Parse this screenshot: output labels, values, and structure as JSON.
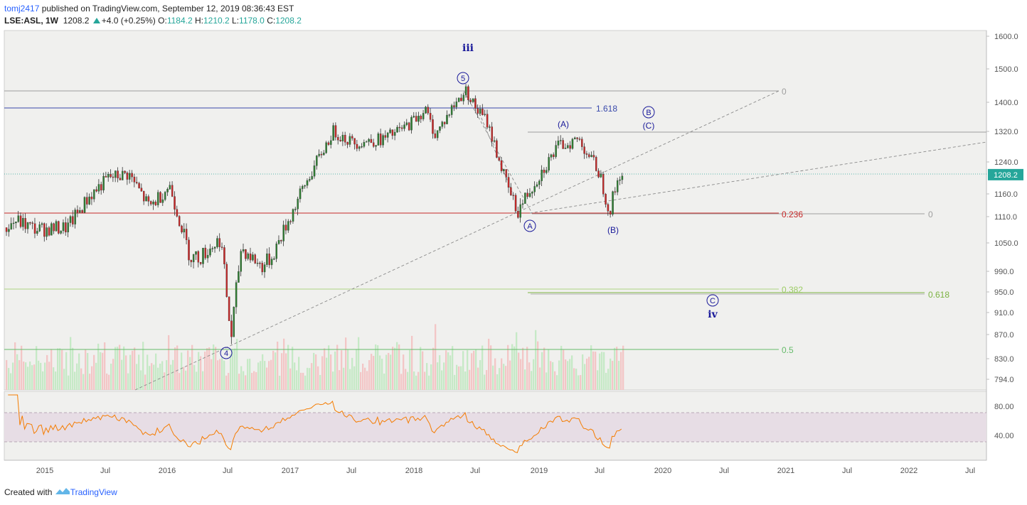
{
  "header": {
    "user": "tomj2417",
    "published_text": " published on TradingView.com, September 12, 2019 08:36:43 EST",
    "symbol": "LSE:ASL, 1W",
    "last": "1208.2",
    "change": "+4.0 (+0.25%)",
    "o_label": "O:",
    "o_val": "1184.2",
    "h_label": "H:",
    "h_val": "1210.2",
    "l_label": "L:",
    "l_val": "1178.0",
    "c_label": "C:",
    "c_val": "1208.2"
  },
  "footer": {
    "created_with": "Created with",
    "brand": "TradingView"
  },
  "colors": {
    "chart_bg": "#f0f0ee",
    "up": "#26a69a",
    "down": "#ef5350",
    "wave_blue": "#1a1a9a",
    "rsi_line": "#f57c00",
    "rsi_band": "#e7dde5"
  },
  "chart_data": {
    "type": "candlestick",
    "symbol": "LSE:ASL",
    "interval": "1W",
    "y_axis_ticks": [
      "1600.0",
      "1500.0",
      "1400.0",
      "1320.0",
      "1240.0",
      "1160.0",
      "1110.0",
      "1050.0",
      "990.0",
      "950.0",
      "910.0",
      "870.0",
      "830.0",
      "794.0"
    ],
    "last_price_label": "1208.2",
    "x_axis_ticks": [
      "2015",
      "Jul",
      "2016",
      "Jul",
      "2017",
      "Jul",
      "2018",
      "Jul",
      "2019",
      "Jul",
      "2020",
      "Jul",
      "2021",
      "Jul",
      "2022",
      "Jul"
    ],
    "rsi_ticks": [
      "80.00",
      "40.00"
    ],
    "series": [
      {
        "name": "price",
        "dates": [
          "2014-09",
          "2014-10",
          "2014-12",
          "2015-03",
          "2015-05",
          "2015-07",
          "2015-09",
          "2015-11",
          "2016-01",
          "2016-03",
          "2016-04",
          "2016-06",
          "2016-07",
          "2016-08",
          "2016-10",
          "2016-11",
          "2017-01",
          "2017-03",
          "2017-05",
          "2017-07",
          "2017-10",
          "2017-12",
          "2018-02",
          "2018-03",
          "2018-05",
          "2018-06",
          "2018-07",
          "2018-08",
          "2018-10",
          "2018-11",
          "2019-01",
          "2019-03",
          "2019-05",
          "2019-07",
          "2019-08",
          "2019-09"
        ],
        "close": [
          1085,
          1100,
          1080,
          1085,
          1150,
          1200,
          1210,
          1130,
          1180,
          1020,
          1020,
          1060,
          860,
          1040,
          1000,
          1020,
          1120,
          1220,
          1320,
          1290,
          1300,
          1330,
          1380,
          1310,
          1400,
          1435,
          1380,
          1350,
          1180,
          1120,
          1200,
          1280,
          1300,
          1215,
          1120,
          1208.2
        ]
      }
    ],
    "wave_labels": [
      "iii",
      "5",
      "4",
      "A",
      "(A)",
      "(B)",
      "B",
      "(C)",
      "C",
      "iv"
    ],
    "fib_levels": [
      "0",
      "1.618",
      "0.236",
      "0",
      "0.382",
      "0.618",
      "0.5"
    ]
  }
}
